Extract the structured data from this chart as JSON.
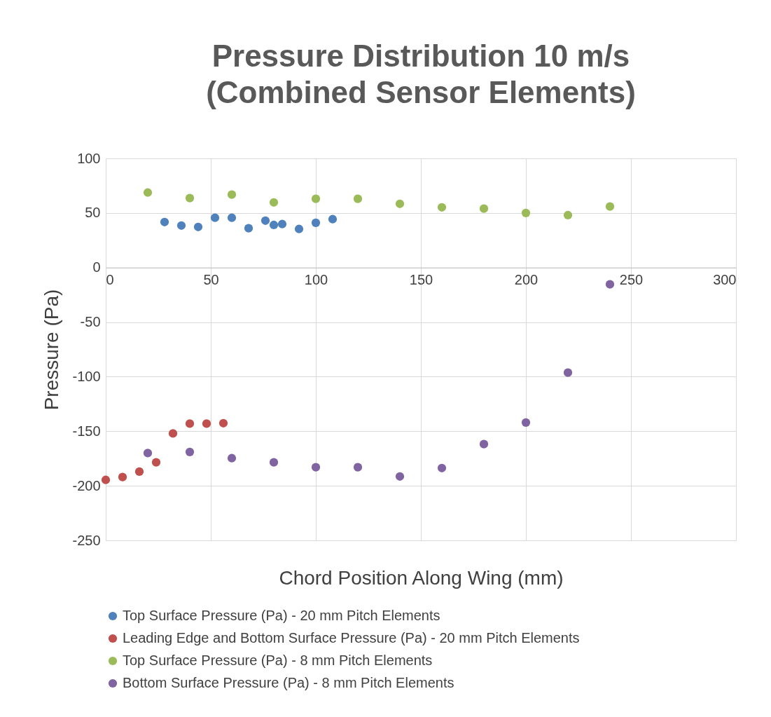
{
  "chart_data": {
    "type": "scatter",
    "title": "Pressure Distribution 10 m/s\n(Combined Sensor Elements)",
    "xlabel": "Chord Position Along Wing (mm)",
    "ylabel": "Pressure (Pa)",
    "xlim": [
      0,
      300
    ],
    "xticks": [
      0,
      50,
      100,
      150,
      200,
      250,
      300
    ],
    "ylim": [
      -250,
      100
    ],
    "yticks": [
      -250,
      -200,
      -150,
      -100,
      -50,
      0,
      50,
      100
    ],
    "grid": true,
    "legend": "bottom",
    "marker": "circle",
    "series": [
      {
        "name": "Top Surface Pressure (Pa) - 20 mm Pitch Elements",
        "color": "#4f81bd",
        "x": [
          28,
          36,
          44,
          52,
          60,
          68,
          76,
          80,
          84,
          92,
          100,
          108
        ],
        "values": [
          41.7,
          38.5,
          37.2,
          45.6,
          45.6,
          36,
          43,
          39,
          39.8,
          35.3,
          41,
          44.3
        ]
      },
      {
        "name": "Leading Edge and Bottom Surface Pressure (Pa) - 20 mm Pitch Elements",
        "color": "#c0504d",
        "x": [
          0,
          8,
          16,
          24,
          32,
          40,
          48,
          56
        ],
        "values": [
          -194.6,
          -192,
          -187,
          -178.5,
          -152,
          -143,
          -143,
          -142.6
        ]
      },
      {
        "name": "Top Surface Pressure (Pa) - 8 mm Pitch Elements",
        "color": "#9bbb59",
        "x": [
          20,
          40,
          60,
          80,
          100,
          120,
          140,
          160,
          180,
          200,
          220,
          240
        ],
        "values": [
          68.7,
          63.6,
          66.8,
          59.7,
          63,
          63,
          58.4,
          55.2,
          54,
          50,
          48,
          55.9
        ]
      },
      {
        "name": "Bottom Surface Pressure (Pa) - 8 mm Pitch Elements",
        "color": "#8064a2",
        "x": [
          20,
          40,
          60,
          80,
          100,
          120,
          140,
          160,
          180,
          200,
          220,
          240
        ],
        "values": [
          -170,
          -169,
          -174.7,
          -178.5,
          -183,
          -183,
          -191.4,
          -183.7,
          -161.8,
          -142,
          -96.3,
          -15.4
        ]
      }
    ]
  }
}
